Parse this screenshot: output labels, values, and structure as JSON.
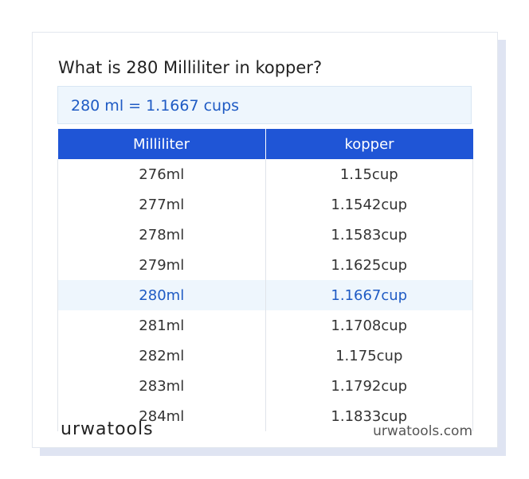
{
  "header": {
    "title": "What is 280 Milliliter in kopper?"
  },
  "result": "280 ml = 1.1667 cups",
  "table": {
    "columns": [
      "Milliliter",
      "kopper"
    ],
    "rows": [
      [
        "276ml",
        "1.15cup"
      ],
      [
        "277ml",
        "1.1542cup"
      ],
      [
        "278ml",
        "1.1583cup"
      ],
      [
        "279ml",
        "1.1625cup"
      ],
      [
        "280ml",
        "1.1667cup"
      ],
      [
        "281ml",
        "1.1708cup"
      ],
      [
        "282ml",
        "1.175cup"
      ],
      [
        "283ml",
        "1.1792cup"
      ],
      [
        "284ml",
        "1.1833cup"
      ]
    ],
    "highlight_row": 4
  },
  "footer": {
    "logo": "urwatools",
    "site": "urwatools.com"
  }
}
